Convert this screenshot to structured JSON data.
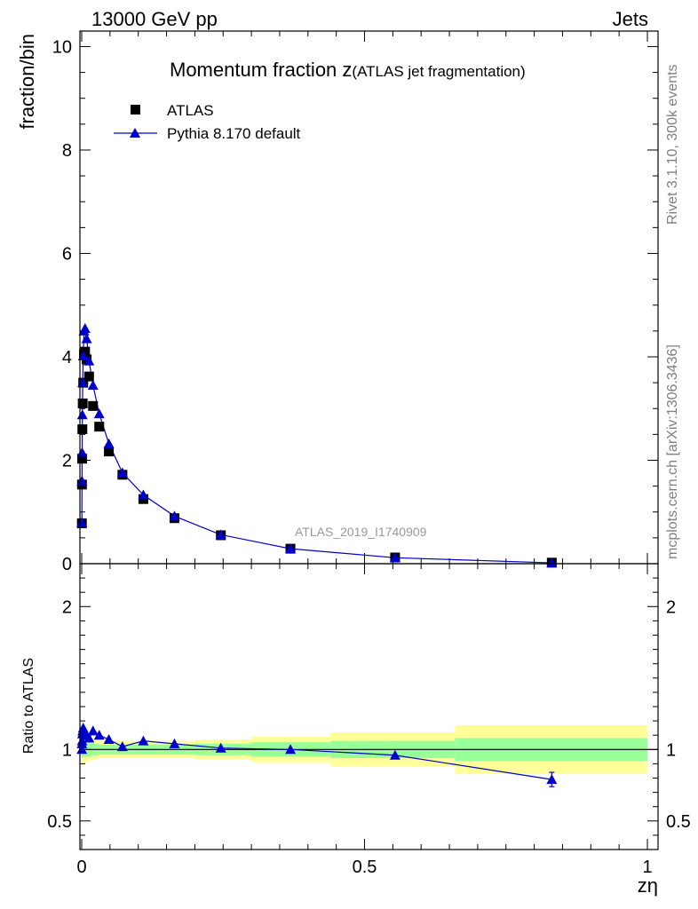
{
  "header": {
    "left": "13000 GeV pp",
    "right": "Jets"
  },
  "side_labels": {
    "rivet": "Rivet 3.1.10,  300k events",
    "mcplots": "mcplots.cern.ch [arXiv:1306.3436]"
  },
  "chart_data": {
    "type": "scatter",
    "title_main": "Momentum fraction z",
    "title_sub": "(ATLAS jet fragmentation)",
    "analysis_tag": "ATLAS_2019_I1740909",
    "xlabel": "zη",
    "ylabel": "fraction/bin",
    "ratio_ylabel": "Ratio to ATLAS",
    "xlim": [
      0,
      1
    ],
    "ylim": [
      0,
      10.3
    ],
    "ratio_ylim": [
      0.3,
      2.3
    ],
    "x_ticks": [
      "0",
      "0.5",
      "1"
    ],
    "y_ticks": [
      "0",
      "2",
      "4",
      "6",
      "8",
      "10"
    ],
    "ratio_ticks": [
      "0.5",
      "1",
      "2"
    ],
    "legend": {
      "placement": "top-left",
      "data_label": "ATLAS",
      "mc_label": "Pythia 8.170 default"
    },
    "series": [
      {
        "name": "ATLAS",
        "marker": "square",
        "color": "#000000",
        "x": [
          0.0003,
          0.0005,
          0.0008,
          0.0012,
          0.0018,
          0.0027,
          0.004,
          0.006,
          0.0088,
          0.013,
          0.02,
          0.031,
          0.048,
          0.072,
          0.109,
          0.164,
          0.246,
          0.369,
          0.554,
          0.831
        ],
        "y": [
          0.78,
          1.53,
          2.03,
          2.6,
          3.1,
          3.5,
          4.05,
          4.1,
          3.95,
          3.62,
          3.05,
          2.65,
          2.17,
          1.72,
          1.25,
          0.88,
          0.55,
          0.29,
          0.12,
          0.02
        ]
      },
      {
        "name": "Pythia 8.170 default",
        "marker": "triangle",
        "color": "#0000cc",
        "x": [
          0.0003,
          0.0005,
          0.0008,
          0.0012,
          0.0018,
          0.0027,
          0.004,
          0.006,
          0.0088,
          0.013,
          0.02,
          0.031,
          0.048,
          0.072,
          0.109,
          0.164,
          0.246,
          0.369,
          0.554,
          0.831
        ],
        "y": [
          0.8,
          1.6,
          2.15,
          2.88,
          3.5,
          4.02,
          4.5,
          4.55,
          4.35,
          3.92,
          3.45,
          2.9,
          2.32,
          1.76,
          1.33,
          0.92,
          0.56,
          0.29,
          0.115,
          0.016
        ]
      }
    ],
    "ratio": {
      "x": [
        0.0003,
        0.0005,
        0.0008,
        0.0012,
        0.0018,
        0.0027,
        0.004,
        0.006,
        0.0088,
        0.013,
        0.02,
        0.031,
        0.048,
        0.072,
        0.109,
        0.164,
        0.246,
        0.369,
        0.554,
        0.831
      ],
      "y": [
        1.0,
        1.04,
        1.06,
        1.11,
        1.13,
        1.15,
        1.11,
        1.11,
        1.1,
        1.08,
        1.13,
        1.1,
        1.07,
        1.02,
        1.06,
        1.04,
        1.01,
        1.0,
        0.96,
        0.79
      ],
      "err": [
        0,
        0,
        0,
        0,
        0,
        0,
        0,
        0,
        0,
        0,
        0,
        0,
        0,
        0,
        0,
        0,
        0,
        0,
        0,
        0.05
      ]
    },
    "uncertainty_bands": {
      "edges": [
        0,
        0.003,
        0.006,
        0.01,
        0.02,
        0.03,
        0.04,
        0.06,
        0.09,
        0.2,
        0.3,
        0.44,
        0.66,
        1.0
      ],
      "inner": [
        0.06,
        0.05,
        0.05,
        0.05,
        0.04,
        0.035,
        0.035,
        0.035,
        0.035,
        0.04,
        0.05,
        0.06,
        0.08
      ],
      "outer": [
        0.12,
        0.1,
        0.09,
        0.08,
        0.07,
        0.06,
        0.06,
        0.06,
        0.06,
        0.07,
        0.09,
        0.12,
        0.17
      ],
      "inner_color": "#99ff99",
      "outer_color": "#ffff99"
    }
  }
}
